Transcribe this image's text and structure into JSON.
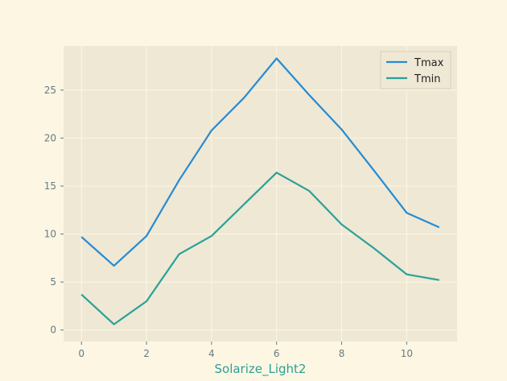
{
  "chart_data": {
    "type": "line",
    "xlabel": "Solarize_Light2",
    "ylabel": "",
    "x": [
      0,
      1,
      2,
      3,
      4,
      5,
      6,
      7,
      8,
      9,
      10,
      11
    ],
    "xlim": [
      -0.55,
      11.55
    ],
    "ylim": [
      -1.2,
      29.6
    ],
    "xticks": [
      0,
      2,
      4,
      6,
      8,
      10
    ],
    "yticks": [
      0,
      5,
      10,
      15,
      20,
      25
    ],
    "grid": true,
    "legend": "top-right",
    "series": [
      {
        "name": "Tmax",
        "color": "#268bd2",
        "values": [
          9.7,
          6.7,
          9.8,
          15.6,
          20.8,
          24.2,
          28.3,
          24.5,
          20.9,
          16.6,
          12.2,
          10.7
        ]
      },
      {
        "name": "Tmin",
        "color": "#2aa198",
        "values": [
          3.7,
          0.6,
          3.0,
          7.9,
          9.8,
          13.1,
          16.4,
          14.5,
          11.0,
          8.5,
          5.8,
          5.2
        ]
      }
    ]
  },
  "colors": {
    "figure_bg": "#fdf6e3",
    "axes_bg": "#eee8d5",
    "grid": "#fdf6e3",
    "tick": "#657b83",
    "label": "#2aa198"
  }
}
